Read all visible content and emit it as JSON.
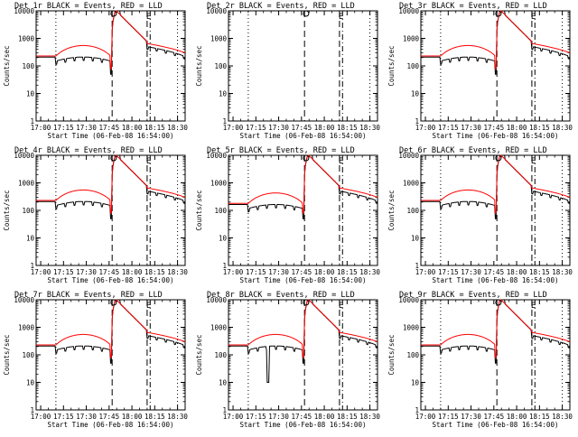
{
  "chart_data": {
    "type": "line",
    "xlabel": "Start Time (06-Feb-08 16:54:00)",
    "ylabel": "Counts/sec",
    "yscale": "log",
    "ylim": [
      1,
      10000
    ],
    "xlim": [
      "16:57",
      "18:35"
    ],
    "yticks": [
      "1",
      "10",
      "100",
      "1000",
      "10000"
    ],
    "xticks": [
      "17:00",
      "17:15",
      "17:30",
      "17:45",
      "18:00",
      "18:15",
      "18:30"
    ],
    "vlines": [
      {
        "time": "17:10",
        "style": "dotted"
      },
      {
        "time": "17:47",
        "style": "dashed"
      },
      {
        "time": "18:10",
        "style": "dashed"
      },
      {
        "time": "18:12",
        "style": "dash-dot"
      },
      {
        "time": "18:30",
        "style": "dotted"
      }
    ],
    "markers": [
      {
        "symbol": "O",
        "time": "17:48"
      },
      {
        "symbol": "E",
        "time": "18:11"
      }
    ],
    "series_colors": {
      "events": "#000000",
      "lld": "#ff0000"
    },
    "panels": [
      {
        "title": "Det 1r BLACK = Events, RED = LLD",
        "xticks": [
          "17:00",
          "17:15",
          "17:30",
          "17:45",
          "18:00",
          "18:15",
          "18:30"
        ]
      },
      {
        "title": "Det 2r BLACK = Events, RED = LLD",
        "xticks": [
          "17:00",
          "17:15",
          "17:30",
          "17:45",
          "18:00",
          "18:15",
          "18:30"
        ]
      },
      {
        "title": "Det 3r BLACK = Events, RED = LLD",
        "xticks": [
          "17:00",
          "17:15",
          "17:30",
          "17:45",
          "18:00",
          "18:15",
          "18:30"
        ]
      },
      {
        "title": "Det 4r BLACK = Events, RED = LLD",
        "xticks": [
          "17:00",
          "17:15",
          "17:30",
          "17:45",
          "18:00",
          "18:15",
          "18:30"
        ]
      },
      {
        "title": "Det 5r BLACK = Events, RED = LLD",
        "xticks": [
          "17:00",
          "17:15",
          "17:30",
          "17:45",
          "18:00",
          "18:15",
          "18:30"
        ]
      },
      {
        "title": "Det 6r BLACK = Events, RED = LLD",
        "xticks": [
          "17:00",
          "17:15",
          "17:30",
          "17:45",
          "18:00",
          "18:15",
          "18:30"
        ]
      },
      {
        "title": "Det 7r BLACK = Events, RED = LLD",
        "xticks": [
          "17:00",
          "17:15",
          "17:30",
          "17:45",
          "18:00",
          "18:15",
          "18:30"
        ]
      },
      {
        "title": "Det 8r BLACK = Events, RED = LLD",
        "xticks": [
          "17:00",
          "17:15",
          "17:30",
          "17:45",
          "18:00",
          "18:15",
          "18:30"
        ]
      },
      {
        "title": "Det 9r BLACK = Events, RED = LLD",
        "xticks": [
          "17:00",
          "17:15",
          "17:30",
          "17:45",
          "18:00",
          "18:15",
          "18:30"
        ]
      }
    ]
  }
}
